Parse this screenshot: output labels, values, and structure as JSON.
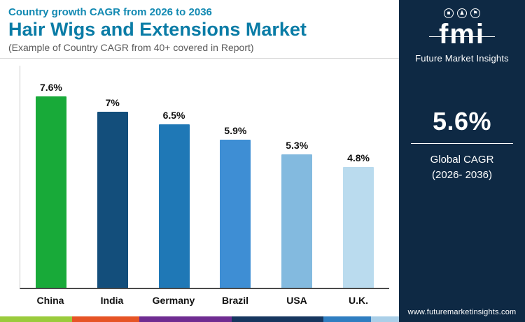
{
  "header": {
    "eyebrow": "Country growth CAGR from 2026 to 2036",
    "title": "Hair Wigs and Extensions Market",
    "subtitle": "(Example of Country CAGR from 40+ covered in Report)"
  },
  "chart_data": {
    "type": "bar",
    "title": "Hair Wigs and Extensions Market — Country growth CAGR from 2026 to 2036",
    "categories": [
      "China",
      "India",
      "Germany",
      "Brazil",
      "USA",
      "U.K."
    ],
    "values": [
      7.6,
      7.0,
      6.5,
      5.9,
      5.3,
      4.8
    ],
    "value_labels": [
      "7.6%",
      "7%",
      "6.5%",
      "5.9%",
      "5.3%",
      "4.8%"
    ],
    "bar_colors": [
      "#18aa39",
      "#134e7b",
      "#1f78b6",
      "#3e8ed4",
      "#83badf",
      "#badbee"
    ],
    "xlabel": "",
    "ylabel": "",
    "ylim": [
      0,
      8
    ],
    "grid": false,
    "legend": "none"
  },
  "sidebar": {
    "logo_text": "fmi",
    "brand_name": "Future Market Insights",
    "stat_value": "5.6%",
    "stat_label_line1": "Global CAGR",
    "stat_label_line2": "(2026- 2036)",
    "website": "www.futuremarketinsights.com",
    "bg_color": "#0e2944"
  },
  "footer_strip": {
    "colors": [
      "#9acb3c",
      "#e65425",
      "#6f2c91",
      "#16365f",
      "#2f7ec1",
      "#aacfe8"
    ],
    "widths": [
      18,
      17,
      23,
      23,
      12,
      7
    ]
  },
  "colors": {
    "eyebrow_text": "#1289b2",
    "title_text": "#0a7ca6",
    "subtitle_text": "#5a5a5a",
    "axis_line": "#4a4a4a"
  }
}
